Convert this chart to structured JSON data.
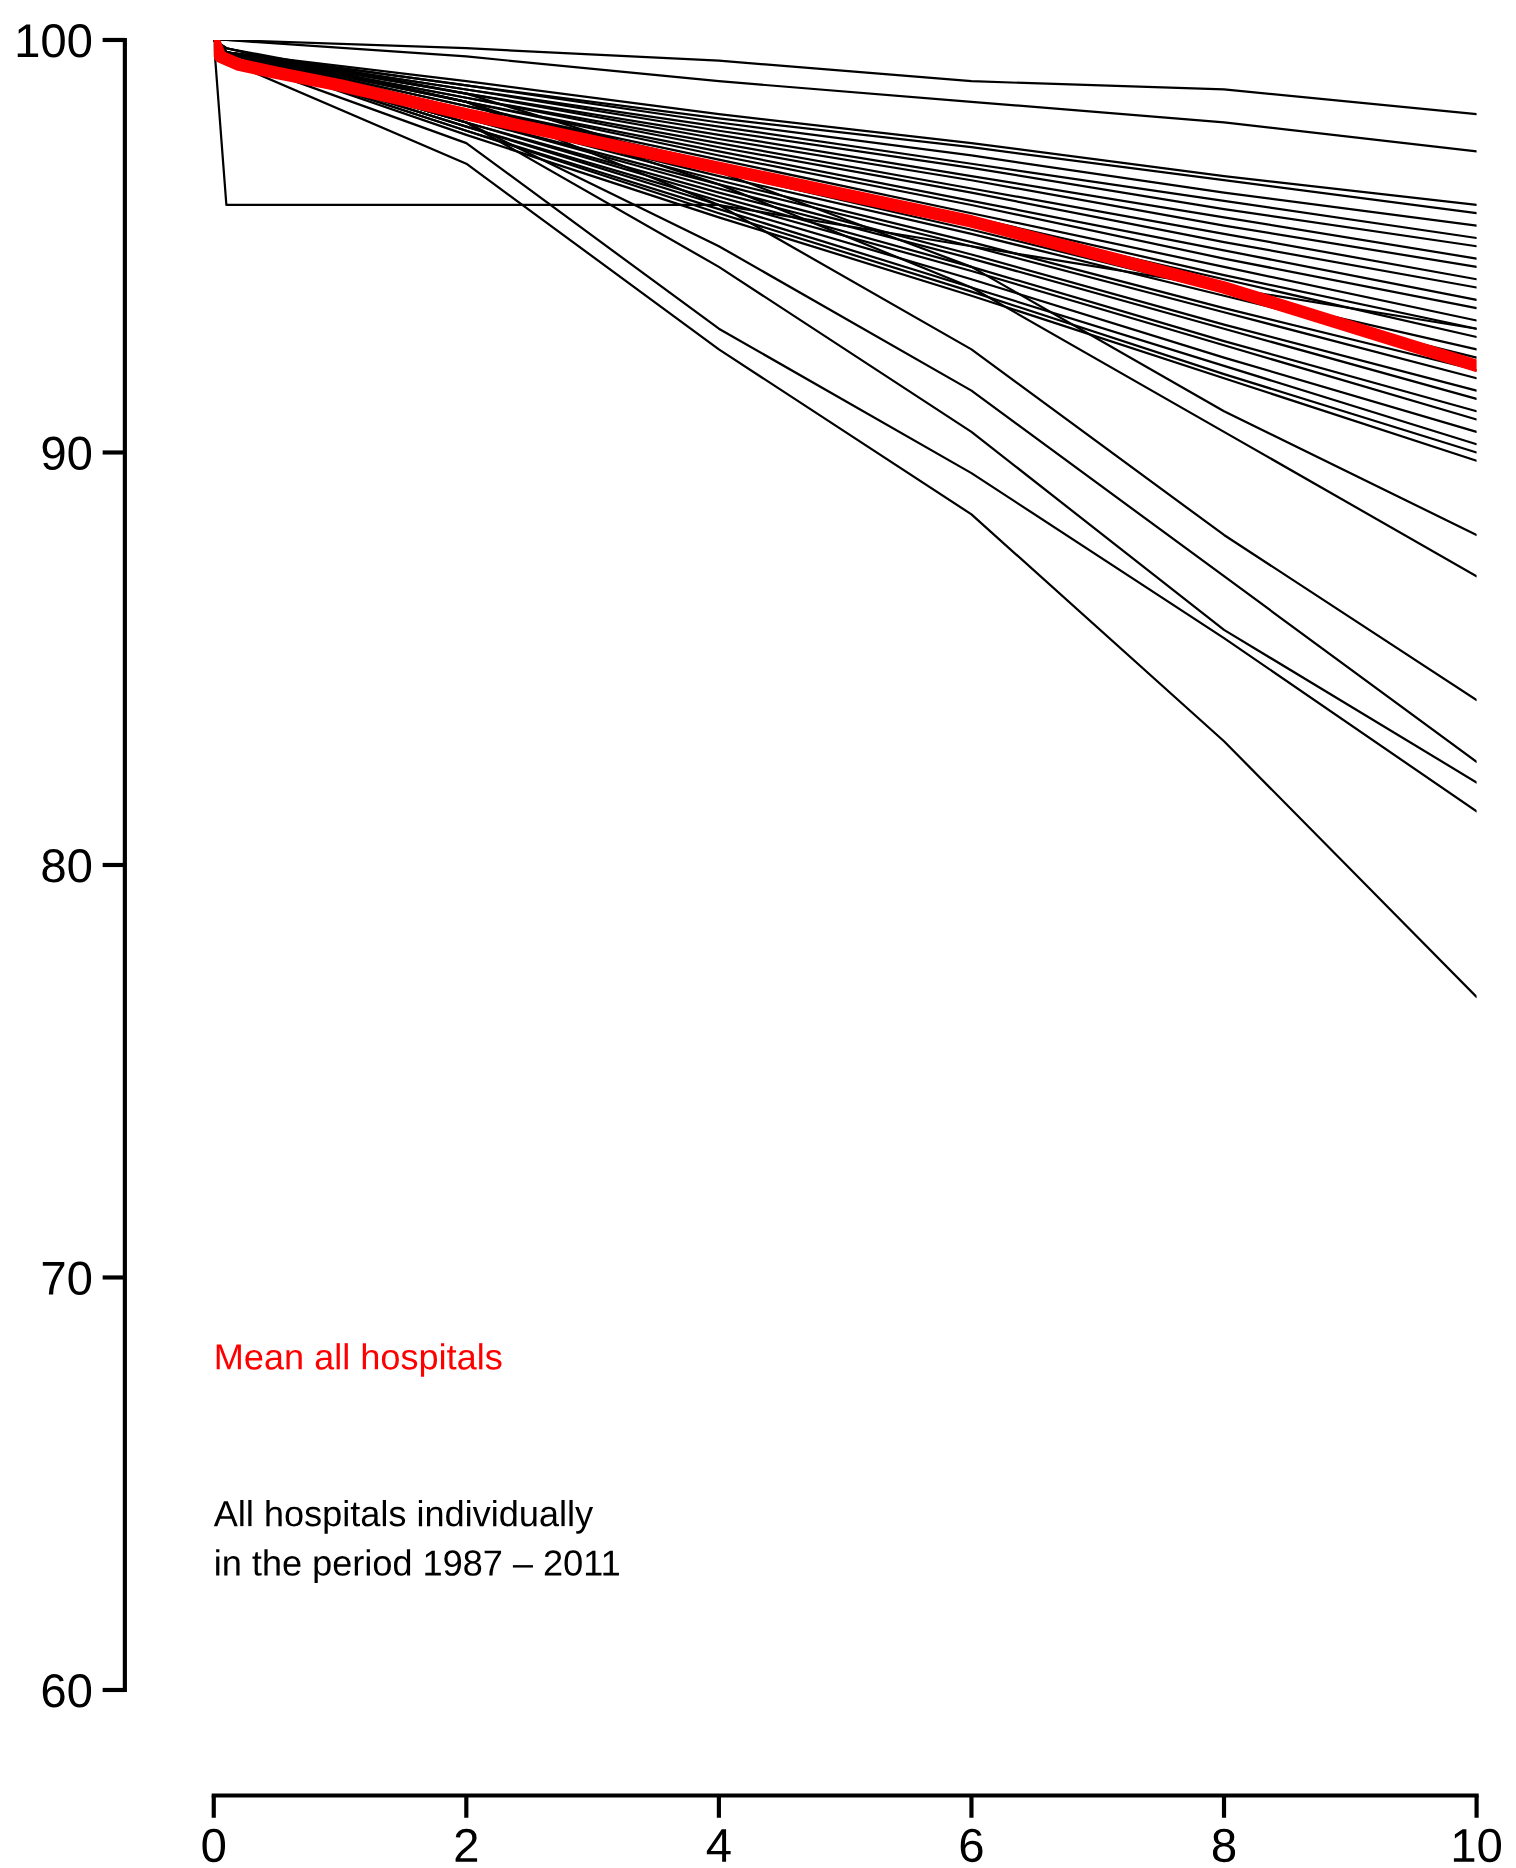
{
  "chart_data": {
    "type": "line",
    "xlim": [
      0,
      10
    ],
    "ylim": [
      60,
      100
    ],
    "xticks": [
      0,
      2,
      4,
      6,
      8,
      10
    ],
    "yticks": [
      60,
      70,
      80,
      90,
      100
    ],
    "grid": false,
    "legend": false,
    "annotations": [
      "All hospitals individually\nin the period 1987 – 2011"
    ],
    "x": [
      0,
      0.1,
      2,
      4,
      6,
      8,
      10
    ],
    "series": [
      {
        "color": "#000000",
        "values": [
          100,
          100,
          99.8,
          99.5,
          99,
          98.8,
          98.2
        ]
      },
      {
        "color": "#000000",
        "values": [
          100,
          100,
          99.6,
          99,
          98.5,
          98,
          97.3
        ]
      },
      {
        "color": "#000000",
        "values": [
          100,
          96,
          96,
          96,
          95,
          94,
          93
        ]
      },
      {
        "color": "#000000",
        "values": [
          100,
          99.7,
          99.0,
          98.2,
          97.5,
          96.7,
          96.0
        ]
      },
      {
        "color": "#000000",
        "values": [
          100,
          99.7,
          98.9,
          98.1,
          97.4,
          96.6,
          95.8
        ]
      },
      {
        "color": "#000000",
        "values": [
          100,
          99.7,
          98.9,
          98.0,
          97.2,
          96.3,
          95.5
        ]
      },
      {
        "color": "#000000",
        "values": [
          100,
          99.7,
          98.8,
          97.9,
          97.0,
          96.1,
          95.2
        ]
      },
      {
        "color": "#000000",
        "values": [
          100,
          99.7,
          98.8,
          97.8,
          96.9,
          95.9,
          95.0
        ]
      },
      {
        "color": "#000000",
        "values": [
          100,
          99.7,
          98.7,
          97.7,
          96.7,
          95.7,
          94.7
        ]
      },
      {
        "color": "#000000",
        "values": [
          100,
          99.7,
          98.7,
          97.6,
          96.6,
          95.5,
          94.5
        ]
      },
      {
        "color": "#000000",
        "values": [
          100,
          99.7,
          98.6,
          97.5,
          96.4,
          95.3,
          94.2
        ]
      },
      {
        "color": "#000000",
        "values": [
          100,
          99.7,
          98.6,
          97.4,
          96.3,
          95.1,
          94.0
        ]
      },
      {
        "color": "#000000",
        "values": [
          100,
          99.7,
          98.5,
          97.3,
          96.1,
          94.9,
          93.7
        ]
      },
      {
        "color": "#000000",
        "values": [
          100,
          99.7,
          98.5,
          97.2,
          96.0,
          94.7,
          93.5
        ]
      },
      {
        "color": "#000000",
        "values": [
          100,
          99.7,
          98.4,
          97.1,
          95.8,
          94.5,
          93.2
        ]
      },
      {
        "color": "#000000",
        "values": [
          100,
          99.7,
          98.4,
          97.0,
          95.7,
          94.3,
          93.0
        ]
      },
      {
        "color": "#000000",
        "values": [
          100,
          99.7,
          98.3,
          96.9,
          95.6,
          94.2,
          92.8
        ]
      },
      {
        "color": "#000000",
        "values": [
          100,
          99.7,
          98.3,
          96.8,
          95.4,
          93.9,
          92.5
        ]
      },
      {
        "color": "#000000",
        "values": [
          100,
          99.7,
          98.2,
          96.7,
          95.3,
          93.8,
          92.3
        ]
      },
      {
        "color": "#000000",
        "values": [
          100,
          99.7,
          98.2,
          96.6,
          95.1,
          93.5,
          92.0
        ]
      },
      {
        "color": "#000000",
        "values": [
          100,
          99.7,
          98.1,
          96.5,
          95.0,
          93.4,
          91.8
        ]
      },
      {
        "color": "#000000",
        "values": [
          100,
          99.7,
          98.1,
          96.4,
          94.8,
          93.1,
          91.5
        ]
      },
      {
        "color": "#000000",
        "values": [
          100,
          99.7,
          98.0,
          96.3,
          94.7,
          93.0,
          91.3
        ]
      },
      {
        "color": "#000000",
        "values": [
          100,
          99.7,
          98.0,
          96.2,
          94.5,
          92.7,
          91.0
        ]
      },
      {
        "color": "#000000",
        "values": [
          100,
          99.7,
          97.9,
          96.1,
          94.4,
          92.6,
          90.8
        ]
      },
      {
        "color": "#000000",
        "values": [
          100,
          99.7,
          97.9,
          96.0,
          94.2,
          92.3,
          90.5
        ]
      },
      {
        "color": "#000000",
        "values": [
          100,
          99.7,
          97.8,
          95.9,
          94.0,
          92.1,
          90.2
        ]
      },
      {
        "color": "#000000",
        "values": [
          100,
          99.7,
          97.8,
          95.8,
          93.9,
          91.9,
          90.0
        ]
      },
      {
        "color": "#000000",
        "values": [
          100,
          99.7,
          97.7,
          95.7,
          93.8,
          91.8,
          89.8
        ]
      },
      {
        "color": "#000000",
        "values": [
          100,
          99.8,
          98.7,
          96.8,
          94.5,
          91,
          88
        ]
      },
      {
        "color": "#000000",
        "values": [
          100,
          99.8,
          98.5,
          96.5,
          94,
          90.5,
          87
        ]
      },
      {
        "color": "#000000",
        "values": [
          100,
          99.8,
          98.5,
          96,
          92.5,
          88,
          84
        ]
      },
      {
        "color": "#000000",
        "values": [
          100,
          99.7,
          98,
          95,
          91.5,
          87,
          82.5
        ]
      },
      {
        "color": "#000000",
        "values": [
          100,
          99.7,
          98,
          94.5,
          90.5,
          85.7,
          82
        ]
      },
      {
        "color": "#000000",
        "values": [
          100,
          99.6,
          97.5,
          93,
          89.5,
          85.5,
          81.3
        ]
      },
      {
        "color": "#000000",
        "values": [
          100,
          99.5,
          97,
          92.5,
          88.5,
          83,
          76.8
        ]
      },
      {
        "type": "line",
        "name": "Mean all hospitals",
        "color": "#ff0000",
        "x": [
          0,
          0.05,
          0.2,
          0.5,
          1,
          2,
          4,
          6,
          8,
          10
        ],
        "values": [
          100,
          99.6,
          99.4,
          99.2,
          98.9,
          98.2,
          96.9,
          95.6,
          94,
          92.1
        ]
      }
    ]
  }
}
